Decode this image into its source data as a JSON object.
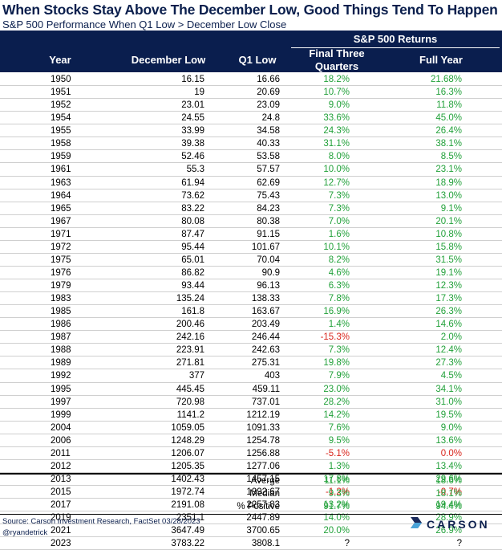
{
  "title": "When Stocks Stay Above The December Low, Good Things Tend To Happen",
  "subtitle": "S&P 500 Performance When Q1 Low > December Low Close",
  "header": {
    "group": "S&P 500 Returns",
    "year": "Year",
    "december_low": "December Low",
    "q1_low": "Q1 Low",
    "final_three_quarters_line1": "Final Three",
    "final_three_quarters_line2": "Quarters",
    "full_year": "Full Year"
  },
  "rows": [
    {
      "year": "1950",
      "dec": "16.15",
      "q1": "16.66",
      "final": "18.2%",
      "full": "21.68%",
      "fs": "pos",
      "us": "pos"
    },
    {
      "year": "1951",
      "dec": "19",
      "q1": "20.69",
      "final": "10.7%",
      "full": "16.3%",
      "fs": "pos",
      "us": "pos"
    },
    {
      "year": "1952",
      "dec": "23.01",
      "q1": "23.09",
      "final": "9.0%",
      "full": "11.8%",
      "fs": "pos",
      "us": "pos"
    },
    {
      "year": "1954",
      "dec": "24.55",
      "q1": "24.8",
      "final": "33.6%",
      "full": "45.0%",
      "fs": "pos",
      "us": "pos"
    },
    {
      "year": "1955",
      "dec": "33.99",
      "q1": "34.58",
      "final": "24.3%",
      "full": "26.4%",
      "fs": "pos",
      "us": "pos"
    },
    {
      "year": "1958",
      "dec": "39.38",
      "q1": "40.33",
      "final": "31.1%",
      "full": "38.1%",
      "fs": "pos",
      "us": "pos"
    },
    {
      "year": "1959",
      "dec": "52.46",
      "q1": "53.58",
      "final": "8.0%",
      "full": "8.5%",
      "fs": "pos",
      "us": "pos"
    },
    {
      "year": "1961",
      "dec": "55.3",
      "q1": "57.57",
      "final": "10.0%",
      "full": "23.1%",
      "fs": "pos",
      "us": "pos"
    },
    {
      "year": "1963",
      "dec": "61.94",
      "q1": "62.69",
      "final": "12.7%",
      "full": "18.9%",
      "fs": "pos",
      "us": "pos"
    },
    {
      "year": "1964",
      "dec": "73.62",
      "q1": "75.43",
      "final": "7.3%",
      "full": "13.0%",
      "fs": "pos",
      "us": "pos"
    },
    {
      "year": "1965",
      "dec": "83.22",
      "q1": "84.23",
      "final": "7.3%",
      "full": "9.1%",
      "fs": "pos",
      "us": "pos"
    },
    {
      "year": "1967",
      "dec": "80.08",
      "q1": "80.38",
      "final": "7.0%",
      "full": "20.1%",
      "fs": "pos",
      "us": "pos"
    },
    {
      "year": "1971",
      "dec": "87.47",
      "q1": "91.15",
      "final": "1.6%",
      "full": "10.8%",
      "fs": "pos",
      "us": "pos"
    },
    {
      "year": "1972",
      "dec": "95.44",
      "q1": "101.67",
      "final": "10.1%",
      "full": "15.8%",
      "fs": "pos",
      "us": "pos"
    },
    {
      "year": "1975",
      "dec": "65.01",
      "q1": "70.04",
      "final": "8.2%",
      "full": "31.5%",
      "fs": "pos",
      "us": "pos"
    },
    {
      "year": "1976",
      "dec": "86.82",
      "q1": "90.9",
      "final": "4.6%",
      "full": "19.1%",
      "fs": "pos",
      "us": "pos"
    },
    {
      "year": "1979",
      "dec": "93.44",
      "q1": "96.13",
      "final": "6.3%",
      "full": "12.3%",
      "fs": "pos",
      "us": "pos"
    },
    {
      "year": "1983",
      "dec": "135.24",
      "q1": "138.33",
      "final": "7.8%",
      "full": "17.3%",
      "fs": "pos",
      "us": "pos"
    },
    {
      "year": "1985",
      "dec": "161.8",
      "q1": "163.67",
      "final": "16.9%",
      "full": "26.3%",
      "fs": "pos",
      "us": "pos"
    },
    {
      "year": "1986",
      "dec": "200.46",
      "q1": "203.49",
      "final": "1.4%",
      "full": "14.6%",
      "fs": "pos",
      "us": "pos"
    },
    {
      "year": "1987",
      "dec": "242.16",
      "q1": "246.44",
      "final": "-15.3%",
      "full": "2.0%",
      "fs": "neg",
      "us": "pos"
    },
    {
      "year": "1988",
      "dec": "223.91",
      "q1": "242.63",
      "final": "7.3%",
      "full": "12.4%",
      "fs": "pos",
      "us": "pos"
    },
    {
      "year": "1989",
      "dec": "271.81",
      "q1": "275.31",
      "final": "19.8%",
      "full": "27.3%",
      "fs": "pos",
      "us": "pos"
    },
    {
      "year": "1992",
      "dec": "377",
      "q1": "403",
      "final": "7.9%",
      "full": "4.5%",
      "fs": "pos",
      "us": "pos"
    },
    {
      "year": "1995",
      "dec": "445.45",
      "q1": "459.11",
      "final": "23.0%",
      "full": "34.1%",
      "fs": "pos",
      "us": "pos"
    },
    {
      "year": "1997",
      "dec": "720.98",
      "q1": "737.01",
      "final": "28.2%",
      "full": "31.0%",
      "fs": "pos",
      "us": "pos"
    },
    {
      "year": "1999",
      "dec": "1141.2",
      "q1": "1212.19",
      "final": "14.2%",
      "full": "19.5%",
      "fs": "pos",
      "us": "pos"
    },
    {
      "year": "2004",
      "dec": "1059.05",
      "q1": "1091.33",
      "final": "7.6%",
      "full": "9.0%",
      "fs": "pos",
      "us": "pos"
    },
    {
      "year": "2006",
      "dec": "1248.29",
      "q1": "1254.78",
      "final": "9.5%",
      "full": "13.6%",
      "fs": "pos",
      "us": "pos"
    },
    {
      "year": "2011",
      "dec": "1206.07",
      "q1": "1256.88",
      "final": "-5.1%",
      "full": "0.0%",
      "fs": "neg",
      "us": "neg"
    },
    {
      "year": "2012",
      "dec": "1205.35",
      "q1": "1277.06",
      "final": "1.3%",
      "full": "13.4%",
      "fs": "pos",
      "us": "pos"
    },
    {
      "year": "2013",
      "dec": "1402.43",
      "q1": "1457.15",
      "final": "17.8%",
      "full": "29.6%",
      "fs": "pos",
      "us": "pos"
    },
    {
      "year": "2015",
      "dec": "1972.74",
      "q1": "1992.67",
      "final": "-1.2%",
      "full": "-0.7%",
      "fs": "neg",
      "us": "neg"
    },
    {
      "year": "2017",
      "dec": "2191.08",
      "q1": "2257.83",
      "final": "13.2%",
      "full": "19.4%",
      "fs": "pos",
      "us": "pos"
    },
    {
      "year": "2019",
      "dec": "2351.1",
      "q1": "2447.89",
      "final": "14.0%",
      "full": "28.9%",
      "fs": "pos",
      "us": "pos"
    },
    {
      "year": "2021",
      "dec": "3647.49",
      "q1": "3700.65",
      "final": "20.0%",
      "full": "26.9%",
      "fs": "pos",
      "us": "pos"
    },
    {
      "year": "2023",
      "dec": "3783.22",
      "q1": "3808.1",
      "final": "?",
      "full": "?",
      "fs": "neu",
      "us": "neu"
    }
  ],
  "summary": [
    {
      "label": "Averge",
      "final": "11.1%",
      "full": "18.6%"
    },
    {
      "label": "Median",
      "final": "9.3%",
      "full": "18.1%"
    },
    {
      "label": "% Positive",
      "final": "91.7%",
      "full": "94.4%"
    }
  ],
  "colors": {
    "header_bg": "#0a1e4e",
    "positive": "#22a13a",
    "negative": "#d9251c"
  },
  "footer": {
    "source": "Source: Carson Investment Research, FactSet 03/28/2023",
    "handle": "@ryandetrick"
  },
  "logo": {
    "text": "CARSON",
    "icon": "carson-chevron-icon"
  }
}
